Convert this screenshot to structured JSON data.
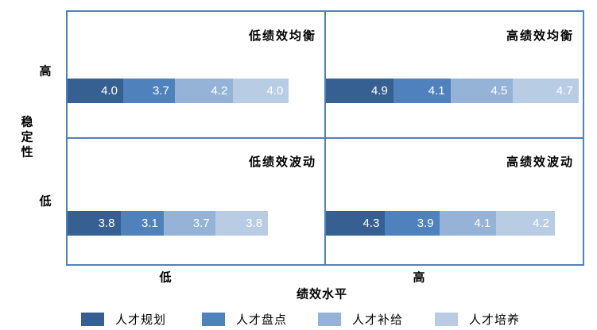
{
  "chart_data": {
    "type": "bar",
    "variant": "horizontal-stacked-quadrant-matrix",
    "series": [
      "人才规划",
      "人才盘点",
      "人才补给",
      "人才培养"
    ],
    "colors": [
      "#376092",
      "#4F81BD",
      "#95B3D7",
      "#B8CCE4"
    ],
    "quadrants": [
      {
        "position": "top-left",
        "title": "低绩效均衡",
        "stability": "高",
        "performance": "低",
        "values": [
          4.0,
          3.7,
          4.2,
          4.0
        ]
      },
      {
        "position": "top-right",
        "title": "高绩效均衡",
        "stability": "高",
        "performance": "高",
        "values": [
          4.9,
          4.1,
          4.5,
          4.7
        ]
      },
      {
        "position": "bottom-left",
        "title": "低绩效波动",
        "stability": "低",
        "performance": "低",
        "values": [
          3.8,
          3.1,
          3.7,
          3.8
        ]
      },
      {
        "position": "bottom-right",
        "title": "高绩效波动",
        "stability": "低",
        "performance": "高",
        "values": [
          4.3,
          3.9,
          4.1,
          4.2
        ]
      }
    ],
    "axes": {
      "y_title": "稳定性",
      "y_tick_high": "高",
      "y_tick_low": "低",
      "x_title": "绩效水平",
      "x_tick_low": "低",
      "x_tick_high": "高"
    },
    "legend": [
      {
        "label": "人才规划",
        "color": "#376092"
      },
      {
        "label": "人才盘点",
        "color": "#4F81BD"
      },
      {
        "label": "人才补给",
        "color": "#95B3D7"
      },
      {
        "label": "人才培养",
        "color": "#B8CCE4"
      }
    ],
    "value_format": "one-decimal",
    "border_color": "#4F81BD",
    "label_color": "#ffffff"
  }
}
